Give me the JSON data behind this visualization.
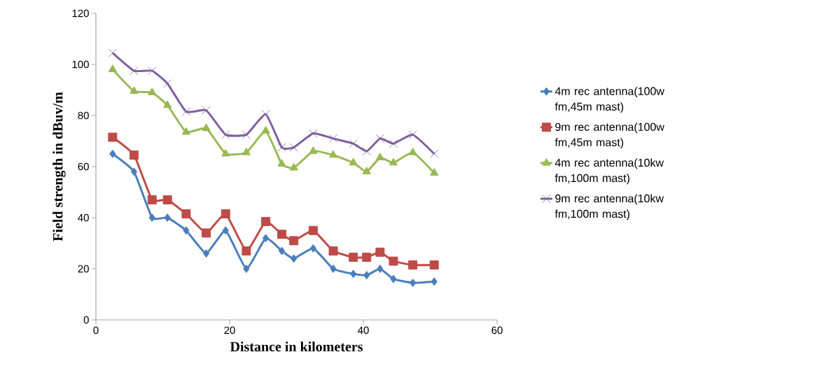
{
  "chart_data": {
    "type": "line",
    "xlabel": "Distance in kilometers",
    "ylabel": "Field strength in dBuv/m",
    "x": [
      2.5,
      5.7,
      8.4,
      10.7,
      13.5,
      16.5,
      19.4,
      22.5,
      25.4,
      27.8,
      29.6,
      32.5,
      35.5,
      38.5,
      40.5,
      42.5,
      44.5,
      47.4,
      50.6
    ],
    "series": [
      {
        "name": "4m rec antenna(100w fm,45m mast)",
        "color": "#4a7ebb",
        "marker": "diamond",
        "values": [
          65,
          58,
          40,
          40,
          35,
          26,
          35,
          20,
          32,
          27,
          24,
          28,
          20,
          18,
          17.5,
          20,
          16,
          14.5,
          15
        ]
      },
      {
        "name": "9m rec antenna(100w fm,45m mast)",
        "color": "#be4b48",
        "marker": "square",
        "values": [
          71.5,
          64.5,
          47,
          47,
          41.5,
          34,
          41.5,
          27,
          38.5,
          33.5,
          31,
          35,
          27,
          24.5,
          24.5,
          26.5,
          23,
          21.5,
          21.5
        ]
      },
      {
        "name": "4m rec antenna(10kw fm,100m mast)",
        "color": "#98b954",
        "marker": "triangle",
        "values": [
          98,
          89.5,
          89,
          84,
          73.5,
          75,
          65,
          65.5,
          74,
          61,
          59.5,
          66,
          64.5,
          61.5,
          58,
          63.5,
          61.5,
          65.5,
          57.5
        ]
      },
      {
        "name": "9m rec antenna(10kw fm,100m mast)",
        "color": "#7d60a0",
        "marker": "cross",
        "values": [
          104.5,
          97.5,
          97.5,
          92.5,
          81.5,
          82,
          72.5,
          72.5,
          80.5,
          67.5,
          67.5,
          73,
          71,
          69,
          66,
          71,
          69,
          72.5,
          65
        ]
      }
    ],
    "xlim": [
      0,
      60
    ],
    "xticks": [
      0,
      20,
      40,
      60
    ],
    "ylim": [
      0,
      120
    ],
    "yticks": [
      0,
      20,
      40,
      60,
      80,
      100,
      120
    ],
    "legend": "right",
    "grid": false,
    "line_style": "solid"
  }
}
